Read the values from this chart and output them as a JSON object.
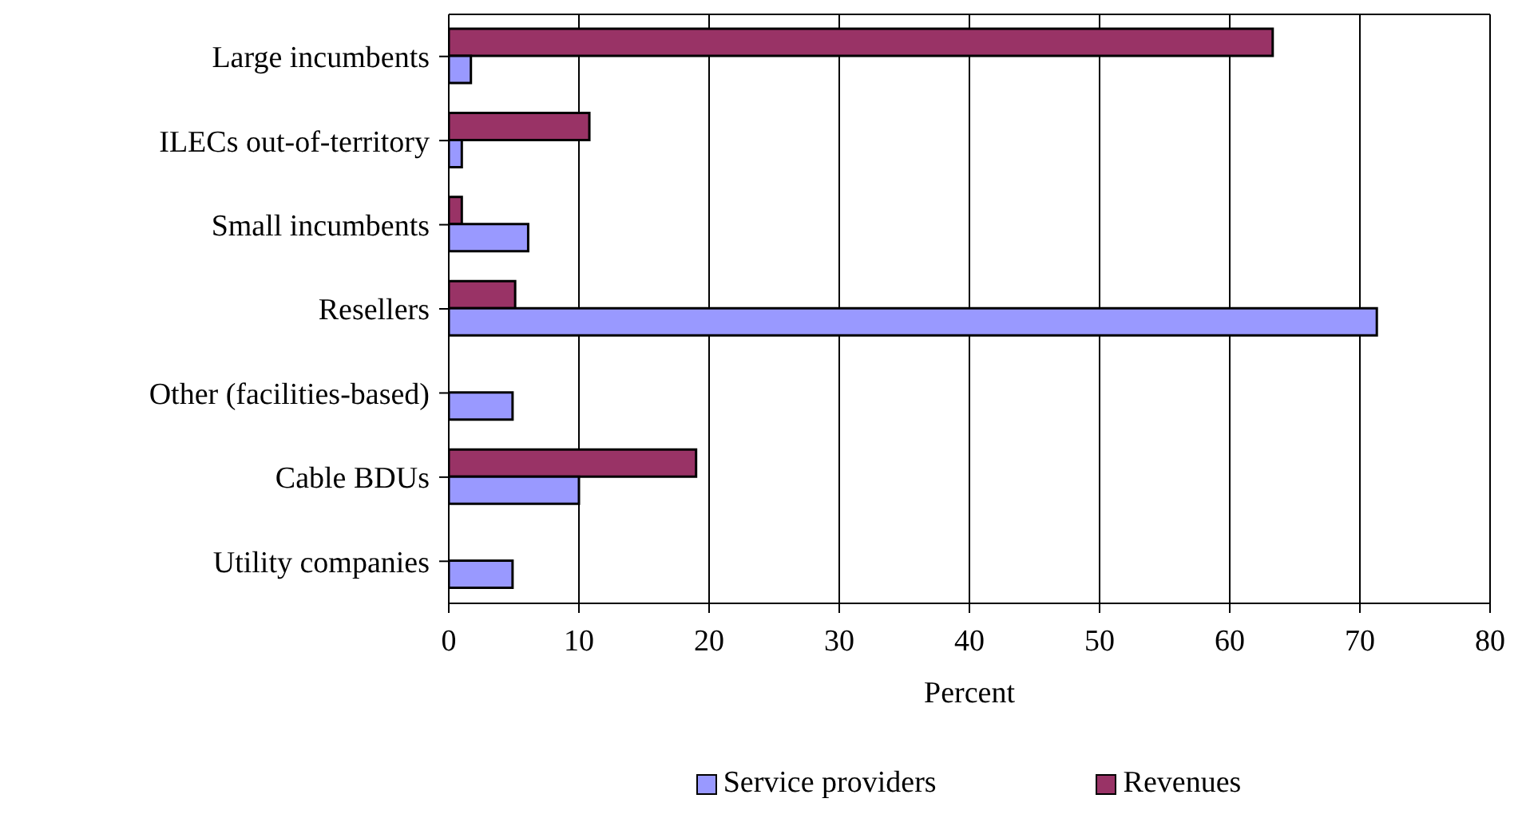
{
  "chart_data": {
    "type": "bar",
    "orientation": "horizontal",
    "xlabel": "Percent",
    "categories": [
      "Large incumbents",
      "ILECs out-of-territory",
      "Small incumbents",
      "Resellers",
      "Other (facilities-based)",
      "Cable BDUs",
      "Utility companies"
    ],
    "series": [
      {
        "name": "Service providers",
        "color": "#9999ff",
        "values": [
          1.7,
          1.0,
          6.1,
          71.3,
          4.9,
          10.0,
          4.9
        ]
      },
      {
        "name": "Revenues",
        "color": "#993366",
        "values": [
          63.3,
          10.8,
          1.0,
          5.1,
          null,
          19.0,
          null
        ]
      }
    ],
    "xlim": [
      0,
      80
    ],
    "xticks": [
      0,
      10,
      20,
      30,
      40,
      50,
      60,
      70,
      80
    ],
    "grid": "x",
    "legend": "bottom"
  }
}
